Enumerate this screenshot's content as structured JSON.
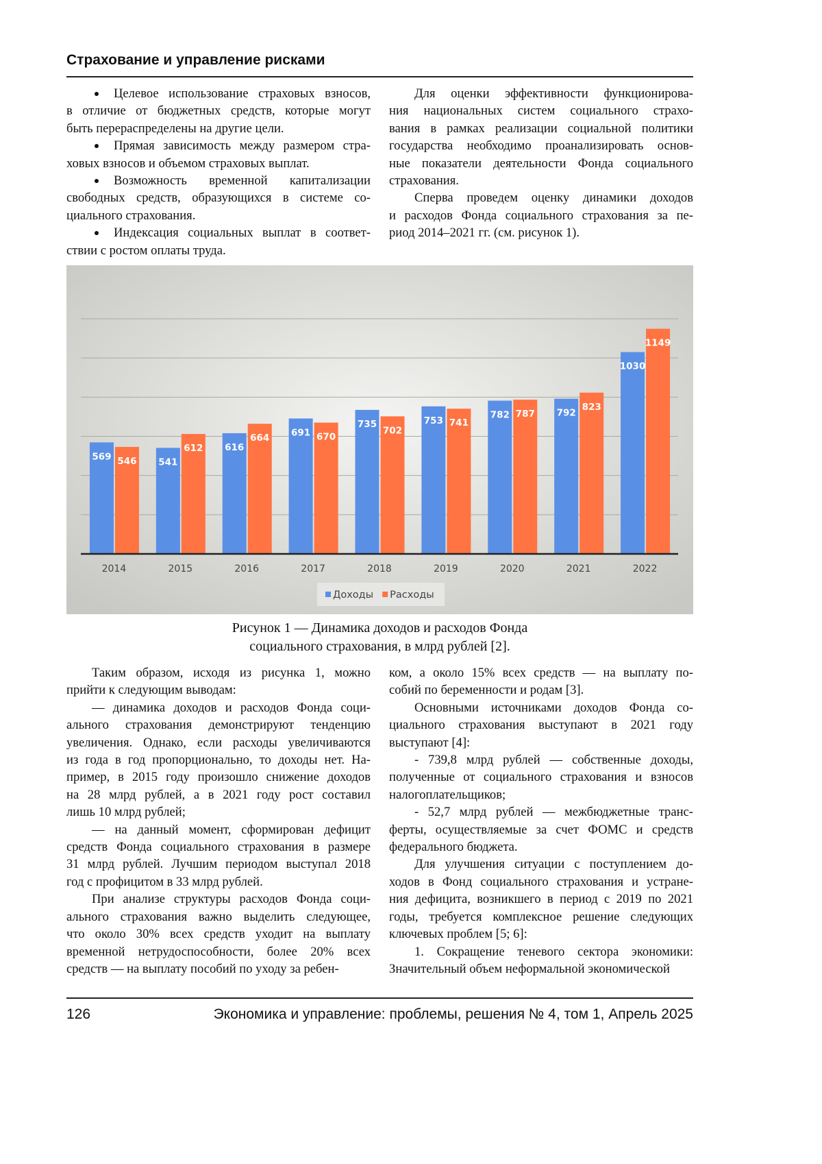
{
  "header": {
    "title": "Страхование и управление рисками"
  },
  "top": {
    "left": [
      {
        "style": "bullet",
        "lines": [
          "Целевое использование страховых взносов,",
          "в отличие от бюджетных средств, которые могут",
          "быть перераспределены на другие цели."
        ]
      },
      {
        "style": "bullet",
        "lines": [
          "Прямая зависимость между размером стра-",
          "ховых взносов и объемом страховых выплат."
        ]
      },
      {
        "style": "bullet",
        "lines": [
          "Возможность временной капитализации",
          "свободных средств, образующихся в системе со-",
          "циального страхования."
        ]
      },
      {
        "style": "bullet",
        "lines": [
          "Индексация социальных выплат в соответ-",
          "ствии с ростом оплаты труда."
        ]
      }
    ],
    "right": [
      {
        "style": "indent",
        "lines": [
          "Для оценки эффективности функционирова-",
          "ния национальных систем социального страхо-",
          "вания в рамках реализации социальной политики",
          "государства необходимо проанализировать основ-",
          "ные показатели деятельности Фонда социального",
          "страхования."
        ]
      },
      {
        "style": "indent",
        "lines": [
          "Сперва проведем оценку динамики доходов",
          "и расходов Фонда социального страхования за пе-",
          "риод 2014–2021 гг. (см. рисунок 1)."
        ]
      }
    ]
  },
  "chart_data": {
    "type": "bar",
    "categories": [
      "2014",
      "2015",
      "2016",
      "2017",
      "2018",
      "2019",
      "2020",
      "2021",
      "2022"
    ],
    "series": [
      {
        "name": "Доходы",
        "color": "#5a8fe6",
        "values": [
          569,
          541,
          616,
          691,
          735,
          753,
          782,
          792,
          1030
        ]
      },
      {
        "name": "Расходы",
        "color": "#ff7442",
        "values": [
          546,
          612,
          664,
          670,
          702,
          741,
          787,
          823,
          1149
        ]
      }
    ],
    "ylim": [
      0,
      1200
    ],
    "yticks": [
      0,
      200,
      400,
      600,
      800,
      1000,
      1200
    ],
    "grid": true,
    "legend": "bottom"
  },
  "caption": [
    "Рисунок 1 — Динамика доходов и расходов Фонда",
    "социального страхования, в млрд рублей [2]."
  ],
  "bottom": {
    "left": [
      {
        "style": "indent",
        "lines": [
          "Таким образом, исходя из рисунка 1, можно",
          "прийти к следующим выводам:"
        ]
      },
      {
        "style": "indent",
        "lines": [
          "— динамика доходов и расходов Фонда соци-",
          "ального страхования демонстрируют тенденцию",
          "увеличения. Однако, если расходы увеличиваются",
          "из года в год пропорционально, то доходы нет. На-",
          "пример, в 2015 году произошло снижение доходов",
          "на 28 млрд рублей, а в 2021 году рост составил",
          "лишь 10 млрд рублей;"
        ]
      },
      {
        "style": "indent",
        "lines": [
          "— на данный момент, сформирован дефицит",
          "средств Фонда социального страхования в размере",
          "31 млрд рублей. Лучшим периодом выступал 2018",
          "год с профицитом в 33 млрд рублей."
        ]
      },
      {
        "style": "indent",
        "lines": [
          "При анализе структуры расходов Фонда соци-",
          "ального страхования важно выделить следующее,",
          "что около 30% всех средств уходит на выплату",
          "временной нетрудоспособности, более 20% всех",
          "средств — на выплату пособий по уходу за ребен-"
        ]
      }
    ],
    "right": [
      {
        "style": "plain",
        "lines": [
          "ком, а около 15% всех средств — на выплату по-",
          "собий по беременности и родам [3]."
        ]
      },
      {
        "style": "indent",
        "lines": [
          "Основными источниками доходов Фонда со-",
          "циального страхования выступают в 2021 году",
          "выступают [4]:"
        ]
      },
      {
        "style": "indent",
        "lines": [
          "- 739,8 млрд рублей — собственные доходы,",
          "полученные от социального страхования и взносов",
          "налогоплательщиков;"
        ]
      },
      {
        "style": "indent",
        "lines": [
          "- 52,7 млрд рублей — межбюджетные транс-",
          "ферты, осуществляемые за счет ФОМС и средств",
          "федерального бюджета."
        ]
      },
      {
        "style": "indent",
        "lines": [
          "Для улучшения ситуации с поступлением до-",
          "ходов в Фонд социального страхования и устране-",
          "ния дефицита, возникшего в период с 2019 по 2021",
          "годы, требуется комплексное решение следующих",
          "ключевых проблем [5; 6]:"
        ]
      },
      {
        "style": "indent",
        "lines": [
          "1. Сокращение теневого сектора экономики:",
          "Значительный объем неформальной экономической"
        ]
      }
    ]
  },
  "footer": {
    "page": "126",
    "journal": "Экономика и управление: проблемы, решения № 4, том 1, Апрель 2025"
  }
}
